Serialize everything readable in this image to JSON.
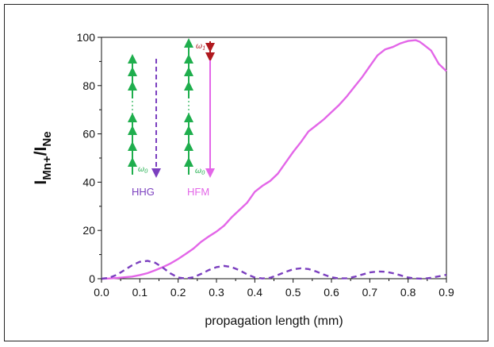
{
  "chart_data": {
    "type": "line",
    "xlabel": "propagation length (mm)",
    "ylabel": {
      "main": "I",
      "sub1": "Mn+",
      "slash": "/I",
      "sub2": "Ne"
    },
    "xlim": [
      0.0,
      0.9
    ],
    "ylim": [
      0,
      100
    ],
    "xticks": [
      "0.0",
      "0.1",
      "0.2",
      "0.3",
      "0.4",
      "0.5",
      "0.6",
      "0.7",
      "0.8",
      "0.9"
    ],
    "yticks": [
      "0",
      "20",
      "40",
      "60",
      "80",
      "100"
    ],
    "grid": false,
    "series": [
      {
        "key": "hfm",
        "color": "#e366e8",
        "dash": "solid",
        "x": [
          0.0,
          0.02,
          0.04,
          0.06,
          0.08,
          0.1,
          0.12,
          0.14,
          0.16,
          0.18,
          0.2,
          0.22,
          0.24,
          0.26,
          0.28,
          0.3,
          0.32,
          0.34,
          0.36,
          0.38,
          0.4,
          0.42,
          0.44,
          0.46,
          0.48,
          0.5,
          0.52,
          0.54,
          0.56,
          0.58,
          0.6,
          0.62,
          0.64,
          0.66,
          0.68,
          0.7,
          0.72,
          0.74,
          0.76,
          0.78,
          0.8,
          0.82,
          0.83,
          0.84,
          0.86,
          0.88,
          0.9
        ],
        "y": [
          0,
          0.1,
          0.3,
          0.6,
          0.9,
          1.5,
          2.3,
          3.5,
          4.8,
          6.3,
          8.2,
          10.3,
          12.5,
          15.3,
          17.5,
          19.5,
          22.0,
          25.5,
          28.5,
          31.5,
          36.0,
          38.5,
          40.5,
          43.5,
          48.0,
          52.5,
          56.5,
          61.0,
          63.5,
          66.0,
          69.0,
          72.0,
          75.5,
          79.5,
          83.5,
          88.0,
          92.5,
          95.0,
          96.0,
          97.5,
          98.5,
          98.8,
          98.2,
          97.0,
          94.5,
          89.0,
          86.0
        ]
      },
      {
        "key": "hhg",
        "color": "#7b3fbf",
        "dash": "dashed",
        "x": [
          0.0,
          0.02,
          0.04,
          0.06,
          0.08,
          0.1,
          0.12,
          0.14,
          0.16,
          0.18,
          0.2,
          0.22,
          0.24,
          0.26,
          0.28,
          0.3,
          0.32,
          0.34,
          0.36,
          0.38,
          0.4,
          0.42,
          0.44,
          0.46,
          0.48,
          0.5,
          0.52,
          0.54,
          0.56,
          0.58,
          0.6,
          0.62,
          0.64,
          0.66,
          0.68,
          0.7,
          0.72,
          0.74,
          0.76,
          0.78,
          0.8,
          0.82,
          0.84,
          0.86,
          0.88,
          0.9
        ],
        "y": [
          0,
          0.4,
          1.6,
          3.6,
          5.6,
          7.0,
          7.4,
          6.6,
          4.6,
          2.2,
          0.5,
          0.1,
          0.6,
          2.0,
          3.6,
          4.8,
          5.3,
          4.8,
          3.5,
          1.8,
          0.5,
          0.1,
          0.4,
          1.5,
          2.8,
          3.9,
          4.3,
          4.0,
          3.0,
          1.7,
          0.6,
          0.1,
          0.2,
          0.8,
          1.7,
          2.6,
          3.0,
          2.9,
          2.3,
          1.4,
          0.5,
          0.1,
          0.0,
          0.4,
          1.0,
          1.6
        ]
      }
    ],
    "inset": {
      "hhg_label": "HHG",
      "hfm_label": "HFM",
      "omega_hhg": "ω",
      "omega_hhg_sub": "0",
      "omega_hfm_bottom": "ω",
      "omega_hfm_bottom_sub": "0",
      "omega_hfm_top": "ω",
      "omega_hfm_top_sub": "1",
      "colors": {
        "green": "#1fae4d",
        "purple": "#7b3fbf",
        "magenta": "#e366e8",
        "red": "#b0191e"
      }
    }
  }
}
